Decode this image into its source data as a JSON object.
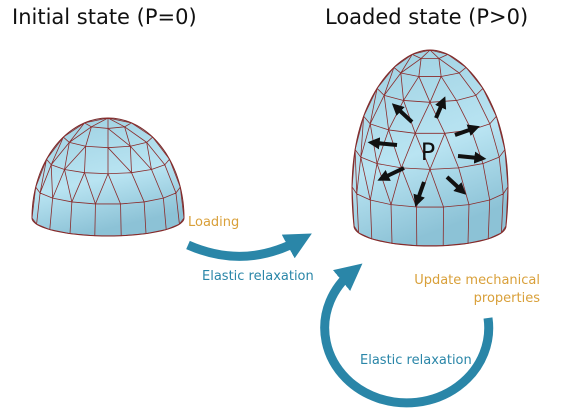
{
  "panels": [
    {
      "title": "Initial state (P=0)"
    },
    {
      "title": "Loaded state (P>0)",
      "pressure_label": "P"
    }
  ],
  "labels": {
    "loading": "Loading",
    "relaxation_top": "Elastic relaxation",
    "update_line1": "Update mechanical",
    "update_line2": "properties",
    "relaxation_bottom": "Elastic relaxation"
  }
}
